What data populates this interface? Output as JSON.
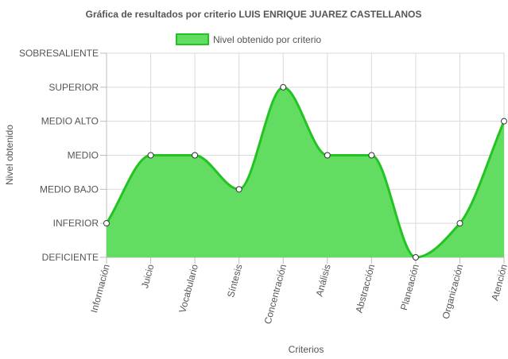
{
  "chart_data": {
    "type": "area",
    "title": "Gráfica de resultados por criterio LUIS ENRIQUE JUAREZ CASTELLANOS",
    "xlabel": "Criterios",
    "ylabel": "Nivel obtenido",
    "y_levels": [
      "DEFICIENTE",
      "INFERIOR",
      "MEDIO BAJO",
      "MEDIO",
      "MEDIO ALTO",
      "SUPERIOR",
      "SOBRESALIENTE"
    ],
    "categories": [
      "Información",
      "Juicio",
      "Vocabulario",
      "Síntesis",
      "Concentración",
      "Análisis",
      "Abstracción",
      "Planeación",
      "Organización",
      "Atención"
    ],
    "series": [
      {
        "name": "Nivel obtenido por criterio",
        "values": [
          "INFERIOR",
          "MEDIO",
          "MEDIO",
          "MEDIO BAJO",
          "SUPERIOR",
          "MEDIO",
          "MEDIO",
          "DEFICIENTE",
          "INFERIOR",
          "MEDIO ALTO"
        ],
        "fill_color": "#62dd62",
        "line_color": "#22c322"
      }
    ],
    "legend_position": "top",
    "grid": true
  }
}
